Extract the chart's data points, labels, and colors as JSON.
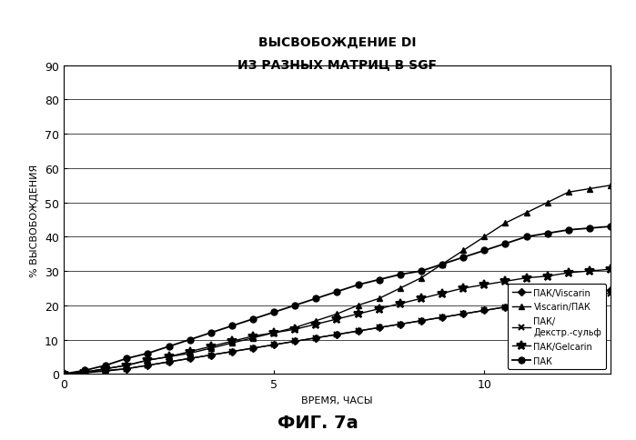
{
  "title_line1": "ВЫСВОБОЖДЕНИЕ DI",
  "title_line2": "ИЗ РАЗНЫХ МАТРИЦ В SGF",
  "xlabel": "ВРЕМЯ, ЧАСЫ",
  "ylabel": "% ВЫСВОБОЖДЕНИЯ",
  "xlim": [
    0,
    13
  ],
  "ylim": [
    0,
    90
  ],
  "xticks": [
    0,
    5,
    10
  ],
  "yticks": [
    0,
    10,
    20,
    30,
    40,
    50,
    60,
    70,
    80,
    90
  ],
  "caption": "ФИГ. 7а",
  "series": [
    {
      "label": "ПАК/Viscarin",
      "marker": "D",
      "markersize": 4,
      "color": "#000000",
      "linewidth": 1.0,
      "x": [
        0,
        0.5,
        1,
        1.5,
        2,
        2.5,
        3,
        3.5,
        4,
        4.5,
        5,
        5.5,
        6,
        6.5,
        7,
        7.5,
        8,
        8.5,
        9,
        9.5,
        10,
        10.5,
        11,
        11.5,
        12,
        12.5,
        13
      ],
      "y": [
        0,
        0.5,
        1,
        1.5,
        2.5,
        3.5,
        4.5,
        5.5,
        6.5,
        7.5,
        8.5,
        9.5,
        10.5,
        11.5,
        12.5,
        13.5,
        14.5,
        15.5,
        16.5,
        17.5,
        18.5,
        19.5,
        20.5,
        21.5,
        22.5,
        23.5,
        24.5
      ]
    },
    {
      "label": "Viscarin/ПАК",
      "marker": "^",
      "markersize": 5,
      "color": "#000000",
      "linewidth": 1.0,
      "x": [
        0,
        0.5,
        1,
        1.5,
        2,
        2.5,
        3,
        3.5,
        4,
        4.5,
        5,
        5.5,
        6,
        6.5,
        7,
        7.5,
        8,
        8.5,
        9,
        9.5,
        10,
        10.5,
        11,
        11.5,
        12,
        12.5,
        13
      ],
      "y": [
        0,
        0.5,
        1.5,
        2.5,
        4,
        5,
        6,
        7.5,
        9,
        10.5,
        12,
        13.5,
        15.5,
        17.5,
        20,
        22,
        25,
        28,
        32,
        36,
        40,
        44,
        47,
        50,
        53,
        54,
        55
      ]
    },
    {
      "label": "ПАК/\nДекстр.-сульф",
      "marker": "x",
      "markersize": 5,
      "color": "#000000",
      "linewidth": 1.0,
      "x": [
        0,
        0.5,
        1,
        1.5,
        2,
        2.5,
        3,
        3.5,
        4,
        4.5,
        5,
        5.5,
        6,
        6.5,
        7,
        7.5,
        8,
        8.5,
        9,
        9.5,
        10,
        10.5,
        11,
        11.5,
        12,
        12.5,
        13
      ],
      "y": [
        0,
        0.3,
        0.8,
        1.5,
        2.5,
        3.5,
        4.5,
        5.5,
        6.5,
        7.5,
        8.5,
        9.5,
        10.5,
        11.5,
        12.5,
        13.5,
        14.5,
        15.5,
        16.5,
        17.5,
        18.5,
        19.5,
        20.5,
        21.5,
        22.5,
        23.0,
        23.5
      ]
    },
    {
      "label": "ПАК/Gelcarin",
      "marker": "*",
      "markersize": 7,
      "color": "#000000",
      "linewidth": 1.0,
      "x": [
        0,
        0.5,
        1,
        1.5,
        2,
        2.5,
        3,
        3.5,
        4,
        4.5,
        5,
        5.5,
        6,
        6.5,
        7,
        7.5,
        8,
        8.5,
        9,
        9.5,
        10,
        10.5,
        11,
        11.5,
        12,
        12.5,
        13
      ],
      "y": [
        0,
        0.5,
        1.5,
        2.5,
        4,
        5,
        6.5,
        8,
        9.5,
        11,
        12,
        13,
        14.5,
        16,
        17.5,
        19,
        20.5,
        22,
        23.5,
        25,
        26,
        27,
        28,
        28.5,
        29.5,
        30,
        30.5
      ]
    },
    {
      "label": "ПАК",
      "marker": "o",
      "markersize": 5,
      "color": "#000000",
      "linewidth": 1.3,
      "x": [
        0,
        0.5,
        1,
        1.5,
        2,
        2.5,
        3,
        3.5,
        4,
        4.5,
        5,
        5.5,
        6,
        6.5,
        7,
        7.5,
        8,
        8.5,
        9,
        9.5,
        10,
        10.5,
        11,
        11.5,
        12,
        12.5,
        13
      ],
      "y": [
        0,
        1,
        2.5,
        4.5,
        6,
        8,
        10,
        12,
        14,
        16,
        18,
        20,
        22,
        24,
        26,
        27.5,
        29,
        30,
        32,
        34,
        36,
        38,
        40,
        41,
        42,
        42.5,
        43
      ]
    }
  ]
}
